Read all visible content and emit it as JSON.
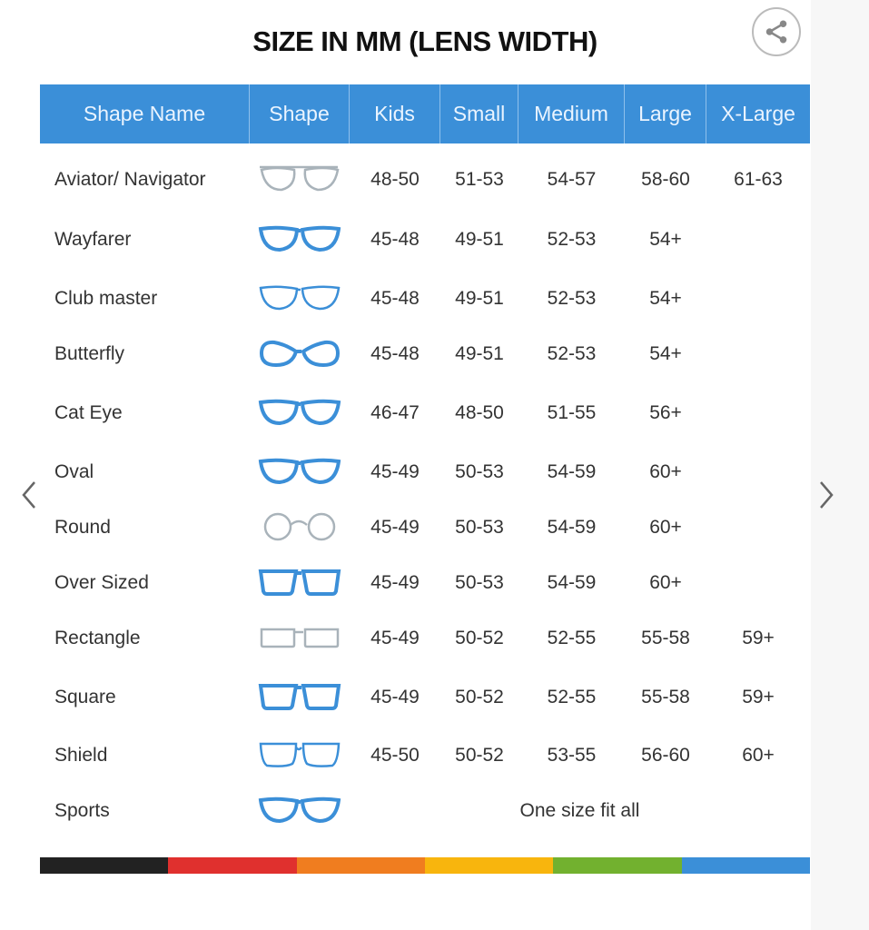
{
  "title": "SIZE IN MM (LENS WIDTH)",
  "share_icon": "share-icon",
  "nav": {
    "prev_icon": "chevron-left-icon",
    "next_icon": "chevron-right-icon"
  },
  "colors": {
    "header": "#3b8fd8",
    "frame_blue": "#3b8fd8",
    "frame_gray": "#a9b3ba",
    "bar": [
      "#222222",
      "#e0302e",
      "#f07d1f",
      "#f8b50d",
      "#72b12f",
      "#3b8fd8"
    ]
  },
  "columns": [
    "Shape Name",
    "Shape",
    "Kids",
    "Small",
    "Medium",
    "Large",
    "X-Large"
  ],
  "rows": [
    {
      "name": "Aviator/ Navigator",
      "shape": "aviator",
      "color": "gray",
      "sizes": [
        "48-50",
        "51-53",
        "54-57",
        "58-60",
        "61-63"
      ]
    },
    {
      "name": "Wayfarer",
      "shape": "wayfarer",
      "color": "blue",
      "sizes": [
        "45-48",
        "49-51",
        "52-53",
        "54+",
        ""
      ]
    },
    {
      "name": "Club master",
      "shape": "clubmaster",
      "color": "mixed",
      "sizes": [
        "45-48",
        "49-51",
        "52-53",
        "54+",
        ""
      ]
    },
    {
      "name": "Butterfly",
      "shape": "butterfly",
      "color": "blue",
      "sizes": [
        "45-48",
        "49-51",
        "52-53",
        "54+",
        ""
      ]
    },
    {
      "name": "Cat Eye",
      "shape": "cateye",
      "color": "blue",
      "sizes": [
        "46-47",
        "48-50",
        "51-55",
        "56+",
        ""
      ]
    },
    {
      "name": "Oval",
      "shape": "oval",
      "color": "blue",
      "sizes": [
        "45-49",
        "50-53",
        "54-59",
        "60+",
        ""
      ]
    },
    {
      "name": "Round",
      "shape": "round",
      "color": "gray",
      "sizes": [
        "45-49",
        "50-53",
        "54-59",
        "60+",
        ""
      ]
    },
    {
      "name": "Over Sized",
      "shape": "oversized",
      "color": "blue",
      "sizes": [
        "45-49",
        "50-53",
        "54-59",
        "60+",
        ""
      ]
    },
    {
      "name": "Rectangle",
      "shape": "rectangle",
      "color": "gray",
      "sizes": [
        "45-49",
        "50-52",
        "52-55",
        "55-58",
        "59+"
      ]
    },
    {
      "name": "Square",
      "shape": "square",
      "color": "blue",
      "sizes": [
        "45-49",
        "50-52",
        "52-55",
        "55-58",
        "59+"
      ]
    },
    {
      "name": "Shield",
      "shape": "shield",
      "color": "mixed",
      "sizes": [
        "45-50",
        "50-52",
        "53-55",
        "56-60",
        "60+"
      ]
    },
    {
      "name": "Sports",
      "shape": "sports",
      "color": "blue",
      "sizes": [],
      "note": "One size fit all"
    }
  ]
}
